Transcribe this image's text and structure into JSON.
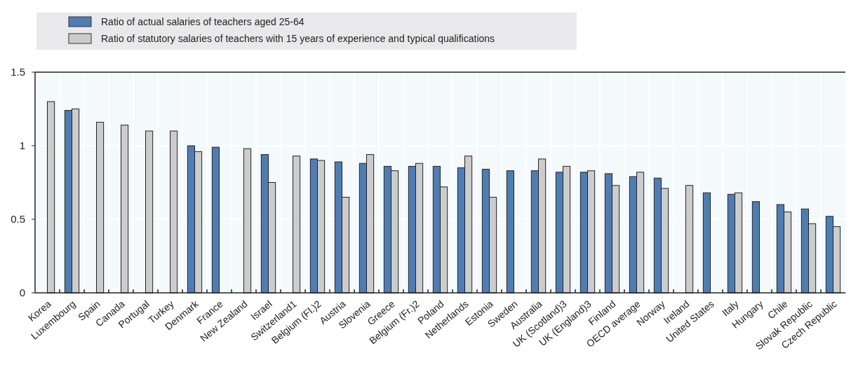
{
  "chart_data": {
    "type": "bar",
    "categories": [
      "Korea",
      "Luxembourg",
      "Spain",
      "Canada",
      "Portugal",
      "Turkey",
      "Denmark",
      "France",
      "New Zealand",
      "Israel",
      "Switzerland1",
      "Belgium (Fl.)2",
      "Austria",
      "Slovenia",
      "Greece",
      "Belgium (Fr.)2",
      "Poland",
      "Netherlands",
      "Estonia",
      "Sweden",
      "Australia",
      "UK (Scotland)3",
      "UK (England)3",
      "Finland",
      "OECD average",
      "Norway",
      "Ireland",
      "United States",
      "Italy",
      "Hungary",
      "Chile",
      "Slovak Republic",
      "Czech Republic"
    ],
    "series": [
      {
        "name": "Ratio of actual salaries of teachers aged 25-64",
        "color": "#4e7db5",
        "values": [
          null,
          1.24,
          null,
          null,
          null,
          null,
          1.0,
          0.99,
          null,
          0.94,
          null,
          0.91,
          0.89,
          0.88,
          0.86,
          0.86,
          0.86,
          0.85,
          0.84,
          0.83,
          0.83,
          0.82,
          0.82,
          0.81,
          0.79,
          0.78,
          null,
          0.68,
          0.67,
          0.62,
          0.6,
          0.57,
          0.52
        ]
      },
      {
        "name": "Ratio of statutory salaries of teachers with 15 years of experience and typical qualifications",
        "color": "#cccccc",
        "values": [
          1.3,
          1.25,
          1.16,
          1.14,
          1.1,
          1.1,
          0.96,
          null,
          0.98,
          0.75,
          0.93,
          0.9,
          0.65,
          0.94,
          0.83,
          0.88,
          0.72,
          0.93,
          0.65,
          null,
          0.91,
          0.86,
          0.83,
          0.73,
          0.82,
          0.71,
          0.73,
          null,
          0.68,
          null,
          0.55,
          0.47,
          0.45
        ]
      }
    ],
    "ylim": [
      0,
      1.5
    ],
    "yticks": [
      0,
      0.5,
      1,
      1.5
    ],
    "grid": true,
    "legend": "top left"
  }
}
